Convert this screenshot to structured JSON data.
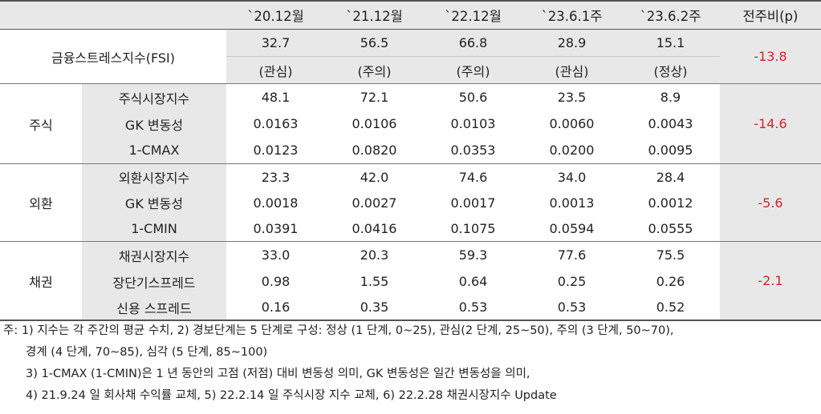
{
  "header": {
    "cols": [
      "`20.12월",
      "`21.12월",
      "`22.12월",
      "`23.6.1주",
      "`23.6.2주"
    ],
    "change": "전주비(p)"
  },
  "fsi": {
    "label": "금융스트레스지수(FSI)",
    "values": [
      "32.7",
      "56.5",
      "66.8",
      "28.9",
      "15.1"
    ],
    "stages": [
      "(관심)",
      "(주의)",
      "(주의)",
      "(관심)",
      "(정상)"
    ],
    "change": "-13.8"
  },
  "groups": [
    {
      "name": "주식",
      "change": "-14.6",
      "rows": [
        {
          "label": "주식시장지수",
          "values": [
            "48.1",
            "72.1",
            "50.6",
            "23.5",
            "8.9"
          ]
        },
        {
          "label": "GK 변동성",
          "values": [
            "0.0163",
            "0.0106",
            "0.0103",
            "0.0060",
            "0.0043"
          ]
        },
        {
          "label": "1-CMAX",
          "values": [
            "0.0123",
            "0.0820",
            "0.0353",
            "0.0200",
            "0.0095"
          ]
        }
      ]
    },
    {
      "name": "외환",
      "change": "-5.6",
      "rows": [
        {
          "label": "외환시장지수",
          "values": [
            "23.3",
            "42.0",
            "74.6",
            "34.0",
            "28.4"
          ]
        },
        {
          "label": "GK 변동성",
          "values": [
            "0.0018",
            "0.0027",
            "0.0017",
            "0.0013",
            "0.0012"
          ]
        },
        {
          "label": "1-CMIN",
          "values": [
            "0.0391",
            "0.0416",
            "0.1075",
            "0.0594",
            "0.0555"
          ]
        }
      ]
    },
    {
      "name": "채권",
      "change": "-2.1",
      "rows": [
        {
          "label": "채권시장지수",
          "values": [
            "33.0",
            "20.3",
            "59.3",
            "77.6",
            "75.5"
          ]
        },
        {
          "label": "장단기스프레드",
          "values": [
            "0.98",
            "1.55",
            "0.64",
            "0.25",
            "0.26"
          ]
        },
        {
          "label": "신용 스프레드",
          "values": [
            "0.16",
            "0.35",
            "0.53",
            "0.53",
            "0.52"
          ]
        }
      ]
    }
  ],
  "notes": [
    "주: 1) 지수는 각 주간의 평균 수치, 2) 경보단계는 5 단계로 구성: 정상 (1 단계, 0~25), 관심(2 단계, 25~50), 주의 (3 단계, 50~70),",
    "경계 (4 단계, 70~85), 심각 (5 단계, 85~100)",
    "3) 1-CMAX (1-CMIN)은 1 년 동안의 고점 (저점) 대비 변동성 의미, GK 변동성은 일간 변동성을 의미,",
    "4) 21.9.24 일 회사채 수익률 교체, 5) 22.2.14 일 주식시장 지수 교체, 6) 22.2.28 채권시장지수 Update"
  ]
}
